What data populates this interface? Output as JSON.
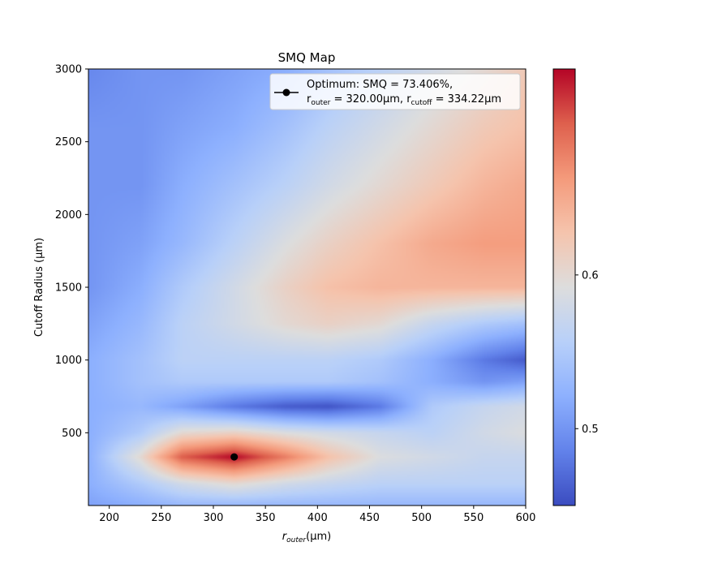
{
  "chart_data": {
    "type": "heatmap",
    "title": "SMQ Map",
    "xlabel_main": "r",
    "xlabel_sub": "outer",
    "xlabel_unit": "(μm)",
    "ylabel": "Cutoff Radius (μm)",
    "xlim": [
      180,
      600
    ],
    "ylim": [
      0,
      3000
    ],
    "x_ticks": [
      "200",
      "250",
      "300",
      "350",
      "400",
      "450",
      "500",
      "550",
      "600"
    ],
    "y_ticks": [
      "500",
      "1000",
      "1500",
      "2000",
      "2500",
      "3000"
    ],
    "colorbar": {
      "colormap": "coolwarm",
      "range": [
        0.45,
        0.734
      ],
      "ticks": [
        "0.5",
        "0.6"
      ]
    },
    "optimum": {
      "x": 320.0,
      "y": 334.22,
      "smq": 0.73406
    },
    "legend": {
      "placement": "top-right",
      "line1": "Optimum: SMQ = 73.406%,",
      "r": "r",
      "outer": "outer",
      "val1": " = 320.00μm, ",
      "cutoff": "cutoff",
      "val2": " = 334.22μm"
    },
    "surface": {
      "x": [
        180,
        230,
        270,
        320,
        370,
        410,
        460,
        510,
        560,
        600
      ],
      "y": [
        0,
        150,
        334,
        500,
        680,
        850,
        1000,
        1250,
        1500,
        1800,
        2200,
        2600,
        3000
      ],
      "z": [
        [
          0.51,
          0.52,
          0.53,
          0.53,
          0.53,
          0.53,
          0.53,
          0.53,
          0.53,
          0.53
        ],
        [
          0.52,
          0.55,
          0.58,
          0.6,
          0.58,
          0.57,
          0.56,
          0.56,
          0.56,
          0.56
        ],
        [
          0.52,
          0.6,
          0.7,
          0.734,
          0.68,
          0.63,
          0.59,
          0.58,
          0.57,
          0.57
        ],
        [
          0.52,
          0.55,
          0.6,
          0.61,
          0.59,
          0.58,
          0.57,
          0.56,
          0.58,
          0.59
        ],
        [
          0.52,
          0.53,
          0.51,
          0.48,
          0.46,
          0.455,
          0.48,
          0.55,
          0.57,
          0.58
        ],
        [
          0.52,
          0.54,
          0.55,
          0.55,
          0.55,
          0.55,
          0.54,
          0.52,
          0.5,
          0.51
        ],
        [
          0.52,
          0.54,
          0.56,
          0.56,
          0.56,
          0.56,
          0.55,
          0.52,
          0.48,
          0.46
        ],
        [
          0.51,
          0.53,
          0.56,
          0.58,
          0.6,
          0.61,
          0.6,
          0.57,
          0.55,
          0.54
        ],
        [
          0.5,
          0.52,
          0.55,
          0.58,
          0.61,
          0.63,
          0.64,
          0.64,
          0.64,
          0.64
        ],
        [
          0.5,
          0.51,
          0.53,
          0.56,
          0.59,
          0.61,
          0.63,
          0.65,
          0.66,
          0.66
        ],
        [
          0.5,
          0.5,
          0.52,
          0.54,
          0.56,
          0.58,
          0.6,
          0.62,
          0.64,
          0.65
        ],
        [
          0.5,
          0.5,
          0.51,
          0.52,
          0.54,
          0.56,
          0.58,
          0.6,
          0.62,
          0.63
        ],
        [
          0.49,
          0.5,
          0.5,
          0.51,
          0.52,
          0.54,
          0.56,
          0.58,
          0.6,
          0.62
        ]
      ]
    }
  }
}
